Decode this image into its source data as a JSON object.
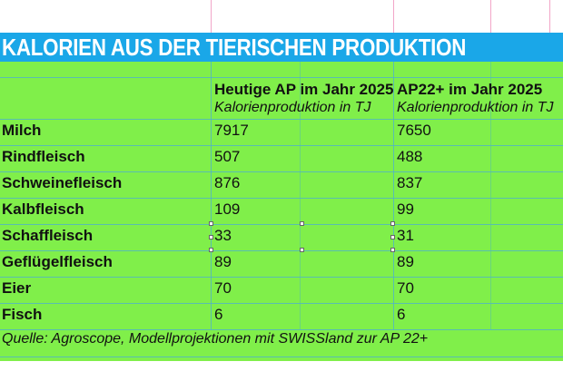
{
  "title": "KALORIEN AUS DER TIERISCHEN PRODUKTION",
  "colors": {
    "title_bg": "#1aa7e8",
    "title_text": "#ffffff",
    "table_bg": "#80ef4a",
    "grid_line": "#4fb1c9"
  },
  "table": {
    "columns": [
      {
        "heading": "Heutige AP im Jahr 2025",
        "subheading": "Kalorienproduktion in TJ"
      },
      {
        "heading": "AP22+ im Jahr 2025",
        "subheading": "Kalorienproduktion in TJ"
      }
    ],
    "rows": [
      {
        "label": "Milch",
        "today": "7917",
        "ap22": "7650"
      },
      {
        "label": "Rindfleisch",
        "today": "507",
        "ap22": "488"
      },
      {
        "label": "Schweinefleisch",
        "today": "876",
        "ap22": "837"
      },
      {
        "label": "Kalbfleisch",
        "today": "109",
        "ap22": "99"
      },
      {
        "label": "Schaffleisch",
        "today": "33",
        "ap22": "31"
      },
      {
        "label": "Geflügelfleisch",
        "today": "89",
        "ap22": "89"
      },
      {
        "label": "Eier",
        "today": "70",
        "ap22": "70"
      },
      {
        "label": "Fisch",
        "today": "6",
        "ap22": "6"
      }
    ],
    "source": "Quelle:  Agroscope, Modellprojektionen mit SWISSland zur AP 22+"
  }
}
